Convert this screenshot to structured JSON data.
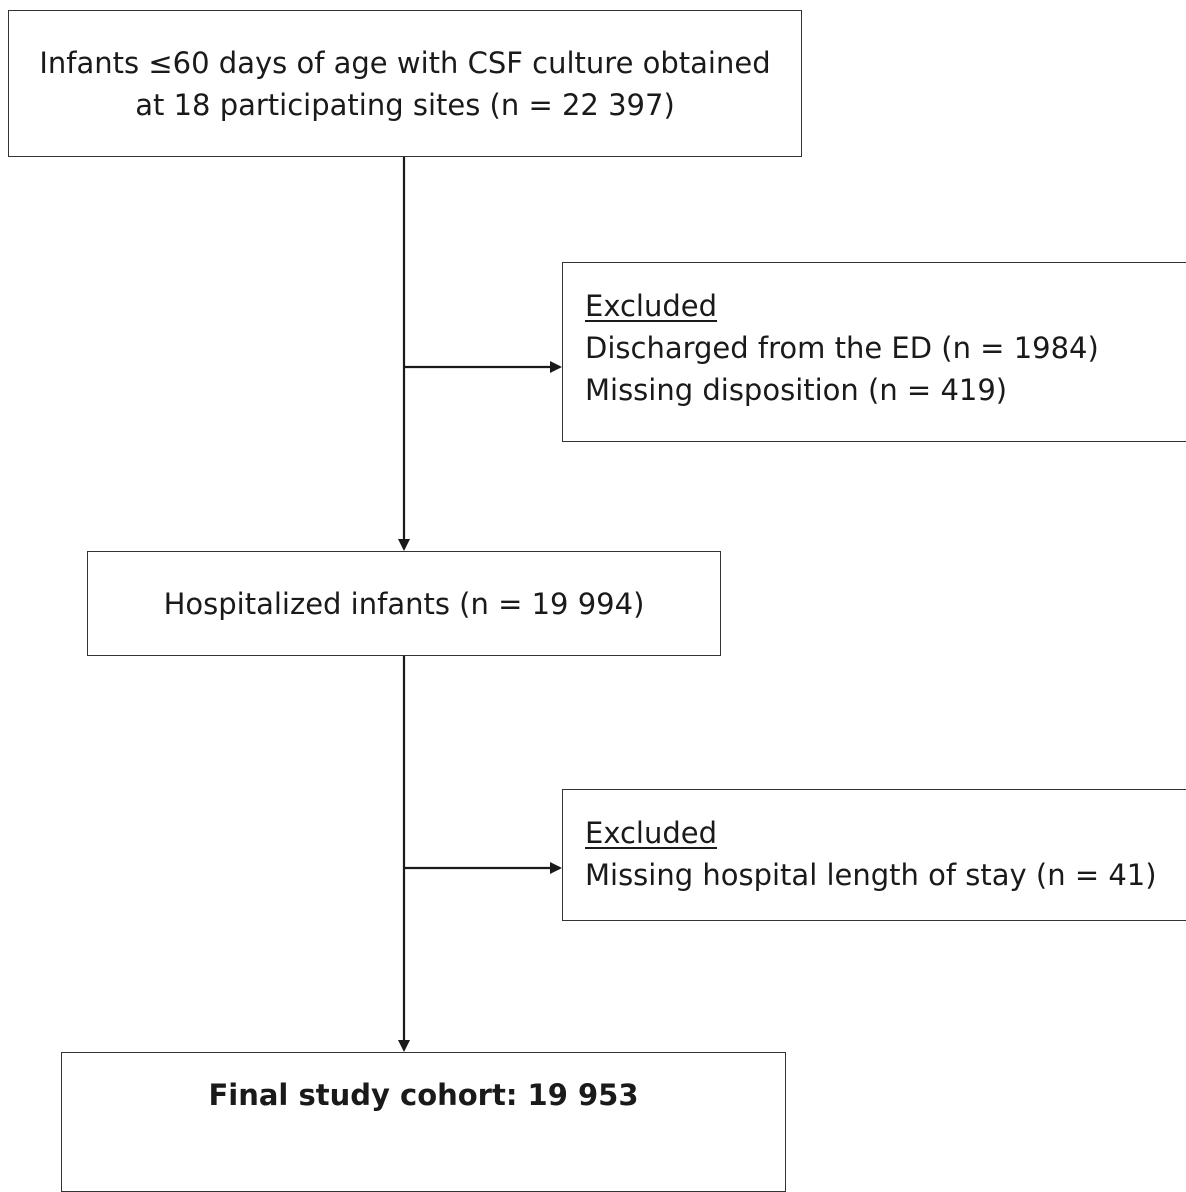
{
  "nodes": {
    "start": {
      "lines": [
        "Infants ≤60 days of age with CSF culture obtained",
        "at 18 participating sites (n = 22 397)"
      ]
    },
    "exclusion_1": {
      "heading": "Excluded",
      "lines": [
        "Discharged from the ED (n = 1984)",
        "Missing disposition (n = 419)"
      ]
    },
    "hospitalized": {
      "text": "Hospitalized infants (n = 19 994)"
    },
    "exclusion_2": {
      "heading": "Excluded",
      "lines": [
        "Missing hospital length of stay (n = 41)"
      ]
    },
    "final": {
      "text": "Final study cohort: 19 953"
    }
  },
  "colors": {
    "border": "#333333",
    "line": "#1a1a1a",
    "text": "#1a1a1a",
    "background": "#ffffff"
  }
}
